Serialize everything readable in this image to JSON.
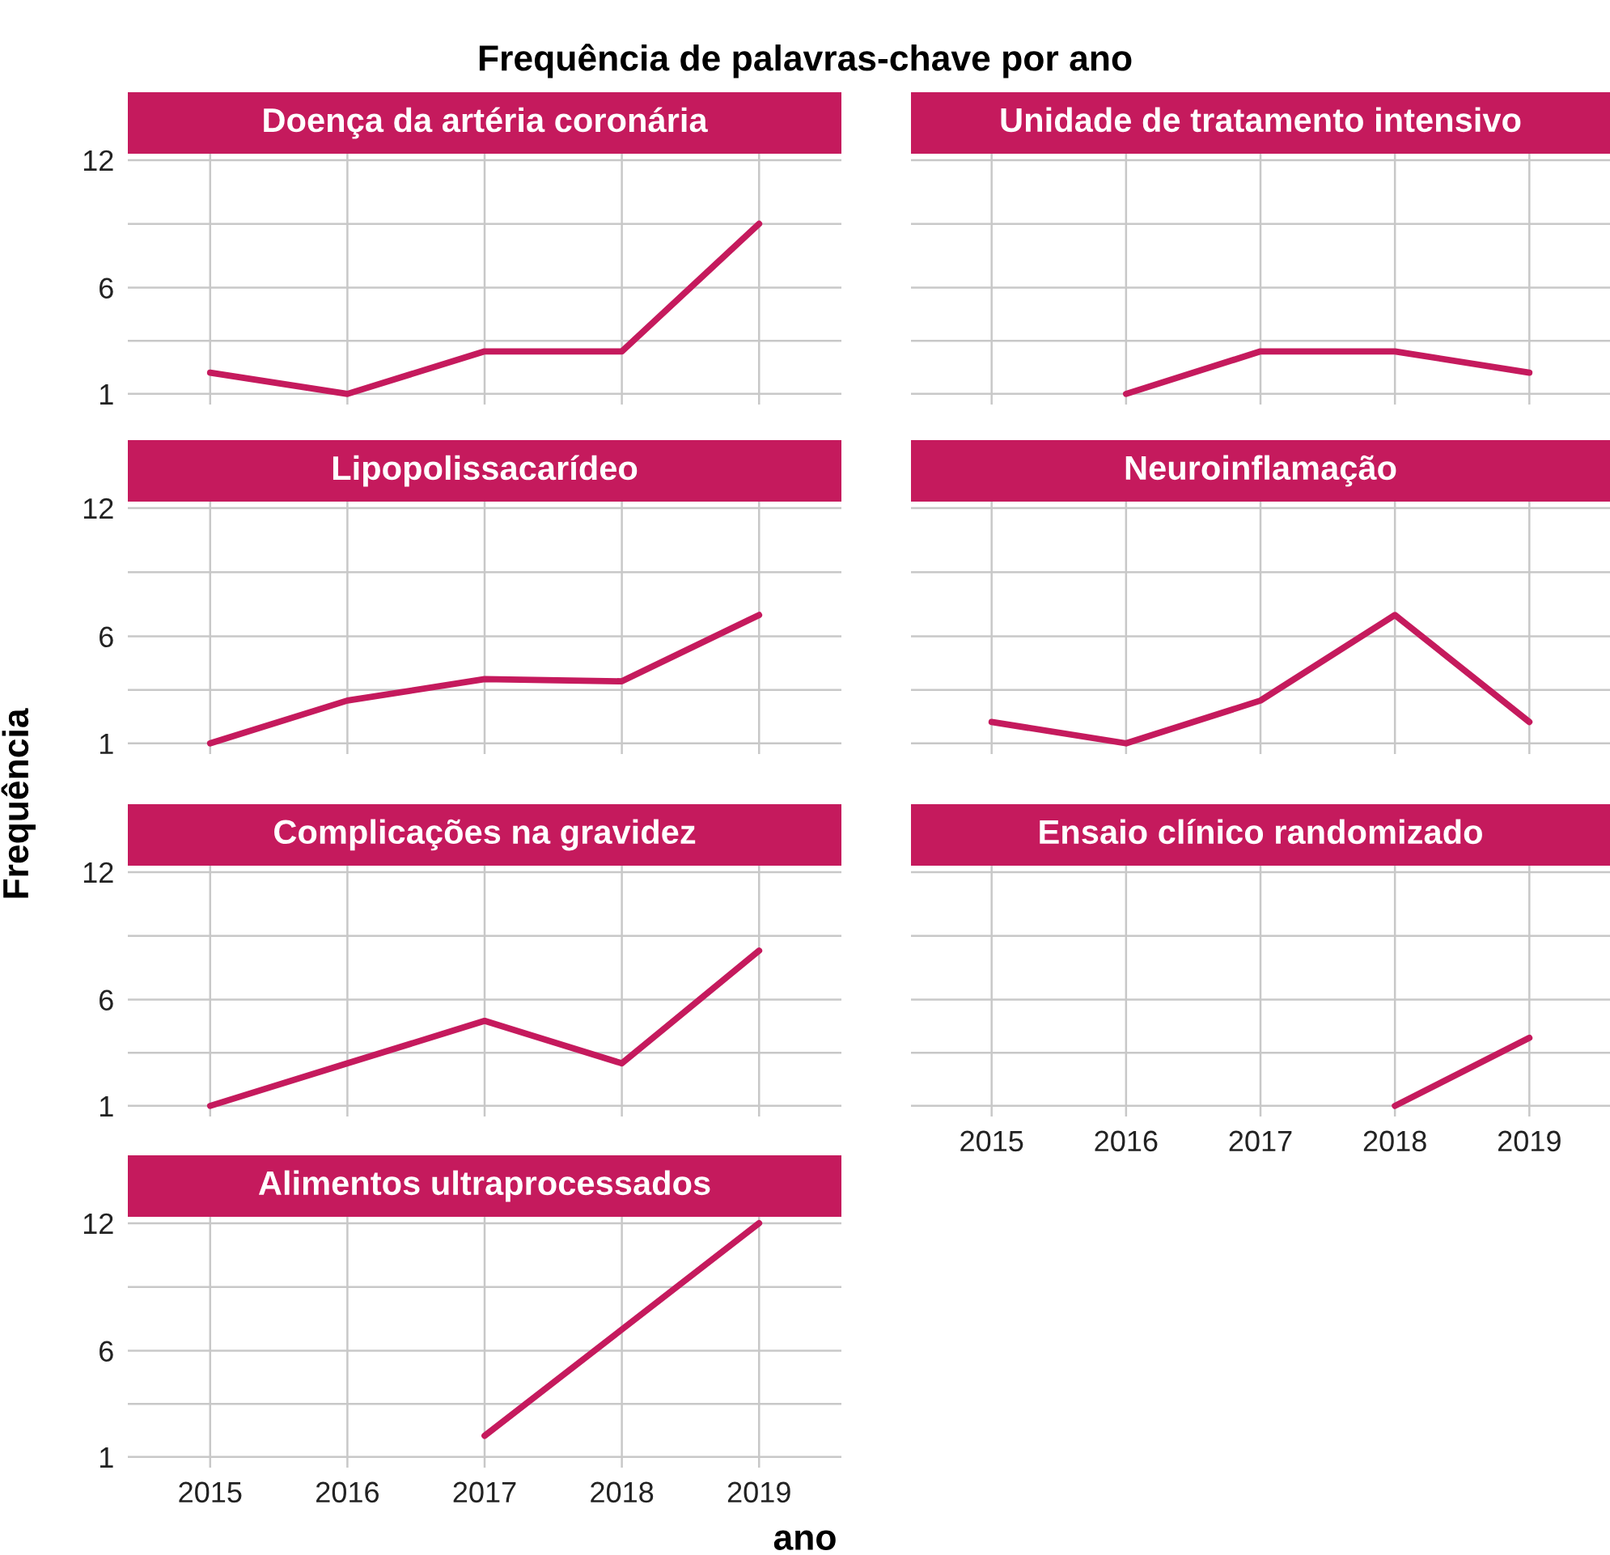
{
  "chart_data": [
    {
      "type": "line",
      "title": "Doença da artéria coronária",
      "annotations": [
        "Frequência de palavras-chave por ano"
      ],
      "x": [
        2015,
        2016,
        2017,
        2018,
        2019
      ],
      "series": [
        {
          "color": "#c51a5d",
          "values": [
            2,
            1,
            3,
            3,
            9
          ]
        }
      ],
      "xlim": [
        2014.4,
        2019.6
      ],
      "xticks": [
        2015,
        2016,
        2017,
        2018,
        2019
      ],
      "ylim": [
        0.5,
        12.3
      ],
      "yticks": [
        1,
        6,
        12
      ],
      "grid": true,
      "tick_labels": "y",
      "marker": "none",
      "line_style": "solid"
    },
    {
      "type": "line",
      "title": "Unidade de tratamento intensivo",
      "x": [
        2016,
        2017,
        2018,
        2019
      ],
      "series": [
        {
          "color": "#c51a5d",
          "values": [
            1,
            3,
            3,
            2
          ]
        }
      ],
      "xlim": [
        2014.4,
        2019.6
      ],
      "xticks": [
        2015,
        2016,
        2017,
        2018,
        2019
      ],
      "ylim": [
        0.5,
        12.3
      ],
      "yticks": [
        1,
        6,
        12
      ],
      "grid": true,
      "tick_labels": false,
      "marker": "none",
      "line_style": "solid"
    },
    {
      "type": "line",
      "title": "Lipopolissacarídeo",
      "x": [
        2015,
        2016,
        2017,
        2018,
        2019
      ],
      "series": [
        {
          "color": "#c51a5d",
          "values": [
            1,
            3,
            4,
            3.9,
            7
          ]
        }
      ],
      "xlim": [
        2014.4,
        2019.6
      ],
      "xticks": [
        2015,
        2016,
        2017,
        2018,
        2019
      ],
      "ylim": [
        0.5,
        12.3
      ],
      "yticks": [
        1,
        6,
        12
      ],
      "grid": true,
      "tick_labels": "y",
      "marker": "none",
      "line_style": "solid"
    },
    {
      "type": "line",
      "title": "Neuroinflamação",
      "x": [
        2015,
        2016,
        2017,
        2018,
        2019
      ],
      "series": [
        {
          "color": "#c51a5d",
          "values": [
            2,
            1,
            3,
            7,
            2
          ]
        }
      ],
      "xlim": [
        2014.4,
        2019.6
      ],
      "xticks": [
        2015,
        2016,
        2017,
        2018,
        2019
      ],
      "ylim": [
        0.5,
        12.3
      ],
      "yticks": [
        1,
        6,
        12
      ],
      "grid": true,
      "tick_labels": false,
      "marker": "none",
      "line_style": "solid"
    },
    {
      "type": "line",
      "title": "Complicações na gravidez",
      "ylabel": "Frequência",
      "x": [
        2015,
        2016,
        2017,
        2018,
        2019
      ],
      "series": [
        {
          "color": "#c51a5d",
          "values": [
            1,
            3,
            5,
            3,
            8.3
          ]
        }
      ],
      "xlim": [
        2014.4,
        2019.6
      ],
      "xticks": [
        2015,
        2016,
        2017,
        2018,
        2019
      ],
      "ylim": [
        0.5,
        12.3
      ],
      "yticks": [
        1,
        6,
        12
      ],
      "grid": true,
      "tick_labels": "y",
      "marker": "none",
      "line_style": "solid"
    },
    {
      "type": "line",
      "title": "Ensaio clínico randomizado",
      "x": [
        2018,
        2019
      ],
      "series": [
        {
          "color": "#c51a5d",
          "values": [
            1,
            4.2
          ]
        }
      ],
      "xlim": [
        2014.4,
        2019.6
      ],
      "xticks": [
        2015,
        2016,
        2017,
        2018,
        2019
      ],
      "ylim": [
        0.5,
        12.3
      ],
      "yticks": [
        1,
        6,
        12
      ],
      "grid": true,
      "tick_labels": "x",
      "marker": "none",
      "line_style": "solid"
    },
    {
      "type": "line",
      "title": "Alimentos ultraprocessados",
      "xlabel": "ano",
      "x": [
        2017,
        2018,
        2019
      ],
      "series": [
        {
          "color": "#c51a5d",
          "values": [
            2,
            7,
            12
          ]
        }
      ],
      "xlim": [
        2014.4,
        2019.6
      ],
      "xticks": [
        2015,
        2016,
        2017,
        2018,
        2019
      ],
      "ylim": [
        0.5,
        12.3
      ],
      "yticks": [
        1,
        6,
        12
      ],
      "grid": true,
      "marker": "none",
      "line_style": "solid"
    }
  ]
}
